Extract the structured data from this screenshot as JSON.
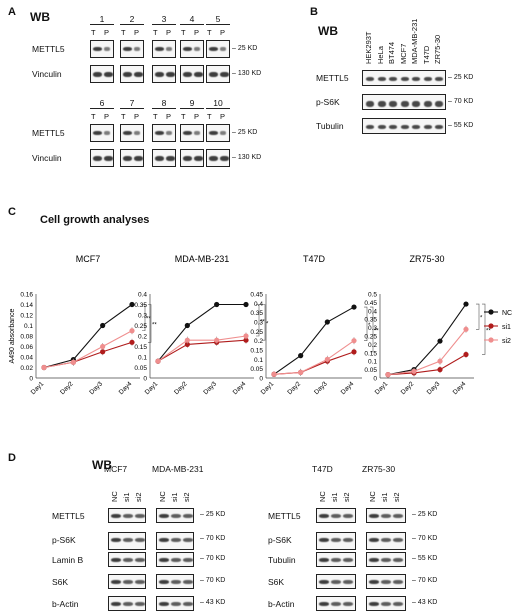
{
  "panels": {
    "a": "A",
    "b": "B",
    "c": "C",
    "d": "D"
  },
  "panelA": {
    "wb_label": "WB",
    "numbers_top": [
      "1",
      "2",
      "3",
      "4",
      "5"
    ],
    "numbers_bottom": [
      "6",
      "7",
      "8",
      "9",
      "10"
    ],
    "tp": [
      "T",
      "P"
    ],
    "rows": [
      "METTL5",
      "Vinculin"
    ],
    "kd": [
      "25 KD",
      "130 KD"
    ]
  },
  "panelB": {
    "wb_label": "WB",
    "samples": [
      "HEK293T",
      "HeLa",
      "BT474",
      "MCF7",
      "MDA-MB-231",
      "T47D",
      "ZR75-30"
    ],
    "rows": [
      "METTL5",
      "p-S6K",
      "Tubulin"
    ],
    "kd": [
      "25 KD",
      "70 KD",
      "55 KD"
    ]
  },
  "panelC": {
    "title": "Cell growth analyses",
    "ylabel": "A490 absorbance",
    "legend": [
      "NC",
      "si1",
      "si2"
    ],
    "legend_colors": [
      "#111111",
      "#b01c1c",
      "#ef8e8e"
    ]
  },
  "chart_data": [
    {
      "type": "line",
      "title": "MCF7",
      "categories": [
        "Day1",
        "Day2",
        "Day3",
        "Day4"
      ],
      "ylim": [
        0,
        0.16
      ],
      "yticks": [
        "0",
        "0.02",
        "0.04",
        "0.06",
        "0.08",
        "0.1",
        "0.12",
        "0.14",
        "0.16"
      ],
      "series": [
        {
          "name": "NC",
          "values": [
            0.02,
            0.035,
            0.1,
            0.14
          ]
        },
        {
          "name": "si1",
          "values": [
            0.02,
            0.03,
            0.05,
            0.068
          ]
        },
        {
          "name": "si2",
          "values": [
            0.02,
            0.03,
            0.06,
            0.09
          ]
        }
      ],
      "sig": [
        "**",
        "**"
      ]
    },
    {
      "type": "line",
      "title": "MDA-MB-231",
      "categories": [
        "Day1",
        "Day2",
        "Day3",
        "Day4"
      ],
      "ylim": [
        0,
        0.4
      ],
      "yticks": [
        "0",
        "0.05",
        "0.1",
        "0.15",
        "0.2",
        "0.25",
        "0.3",
        "0.35",
        "0.4"
      ],
      "series": [
        {
          "name": "NC",
          "values": [
            0.08,
            0.25,
            0.35,
            0.35
          ]
        },
        {
          "name": "si1",
          "values": [
            0.08,
            0.16,
            0.17,
            0.18
          ]
        },
        {
          "name": "si2",
          "values": [
            0.08,
            0.18,
            0.18,
            0.2
          ]
        }
      ],
      "sig": [
        "**",
        "*"
      ]
    },
    {
      "type": "line",
      "title": "T47D",
      "categories": [
        "Day1",
        "Day2",
        "Day3",
        "Day4"
      ],
      "ylim": [
        0,
        0.45
      ],
      "yticks": [
        "0",
        "0.05",
        "0.1",
        "0.15",
        "0.2",
        "0.25",
        "0.3",
        "0.35",
        "0.4",
        "0.45"
      ],
      "series": [
        {
          "name": "NC",
          "values": [
            0.02,
            0.12,
            0.3,
            0.38
          ]
        },
        {
          "name": "si1",
          "values": [
            0.02,
            0.03,
            0.09,
            0.14
          ]
        },
        {
          "name": "si2",
          "values": [
            0.02,
            0.03,
            0.1,
            0.2
          ]
        }
      ],
      "sig": [
        "*",
        "**"
      ]
    },
    {
      "type": "line",
      "title": "ZR75-30",
      "categories": [
        "Day1",
        "Day2",
        "Day3",
        "Day4"
      ],
      "ylim": [
        0,
        0.5
      ],
      "yticks": [
        "0",
        "0.05",
        "0.1",
        "0.15",
        "0.2",
        "0.25",
        "0.3",
        "0.35",
        "0.4",
        "0.45",
        "0.5"
      ],
      "series": [
        {
          "name": "NC",
          "values": [
            0.02,
            0.05,
            0.22,
            0.44
          ]
        },
        {
          "name": "si1",
          "values": [
            0.02,
            0.03,
            0.05,
            0.14
          ]
        },
        {
          "name": "si2",
          "values": [
            0.02,
            0.04,
            0.1,
            0.29
          ]
        }
      ],
      "sig": [
        "*",
        "**"
      ]
    }
  ],
  "panelD": {
    "wb_label": "WB",
    "groups": [
      "MCF7",
      "MDA-MB-231",
      "T47D",
      "ZR75-30"
    ],
    "lanes": [
      "NC",
      "si1",
      "si2"
    ],
    "rows_left": [
      "METTL5",
      "p-S6K",
      "Lamin B",
      "S6K",
      "b-Actin"
    ],
    "kd_left": [
      "25 KD",
      "70 KD",
      "70 KD",
      "70 KD",
      "43 KD"
    ],
    "rows_right": [
      "METTL5",
      "p-S6K",
      "Tubulin",
      "S6K",
      "b-Actin"
    ],
    "kd_right": [
      "25 KD",
      "70 KD",
      "55 KD",
      "70 KD",
      "43 KD"
    ]
  }
}
